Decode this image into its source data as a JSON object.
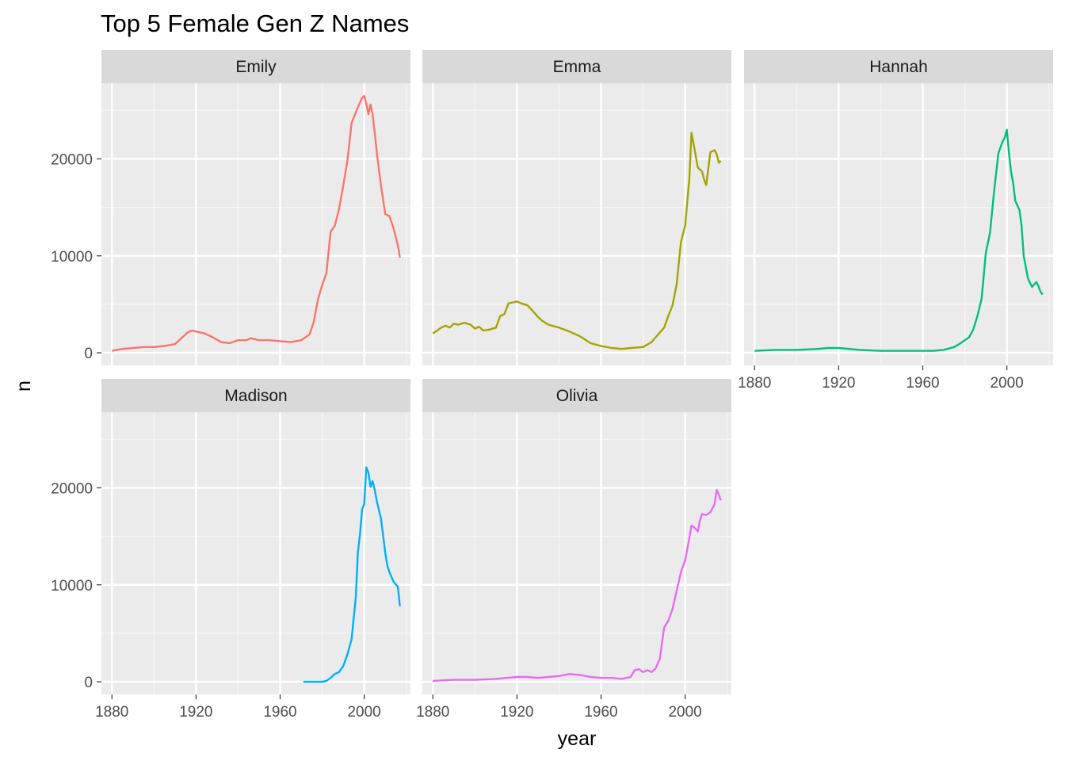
{
  "chart_data": {
    "type": "line",
    "title": "Top 5 Female Gen Z Names",
    "xlabel": "year",
    "ylabel": "n",
    "xlim": [
      1875,
      2022
    ],
    "ylim": [
      -1300,
      27800
    ],
    "x_ticks": [
      1880,
      1920,
      1960,
      2000
    ],
    "y_ticks": [
      0,
      10000,
      20000
    ],
    "x_tick_labels": [
      "1880",
      "1920",
      "1960",
      "2000"
    ],
    "y_tick_labels": [
      "0",
      "10000",
      "20000"
    ],
    "grid": true,
    "legend": "none",
    "panels": [
      {
        "name": "Emily",
        "color": "#F8766D",
        "x": [
          1880,
          1885,
          1890,
          1895,
          1900,
          1905,
          1910,
          1913,
          1916,
          1918,
          1920,
          1924,
          1928,
          1932,
          1936,
          1940,
          1944,
          1946,
          1950,
          1955,
          1960,
          1965,
          1970,
          1974,
          1976,
          1978,
          1980,
          1982,
          1984,
          1986,
          1988,
          1990,
          1992,
          1994,
          1996,
          1998,
          1999,
          2000,
          2001,
          2002,
          2003,
          2004,
          2005,
          2006,
          2008,
          2010,
          2012,
          2014,
          2016,
          2017
        ],
        "y": [
          200,
          400,
          500,
          600,
          600,
          700,
          900,
          1500,
          2100,
          2300,
          2200,
          2000,
          1600,
          1100,
          1000,
          1300,
          1300,
          1500,
          1300,
          1300,
          1200,
          1100,
          1300,
          1900,
          3200,
          5500,
          7000,
          8200,
          12500,
          13100,
          14800,
          17200,
          19800,
          23700,
          24800,
          25800,
          26300,
          26500,
          25700,
          24600,
          25600,
          24600,
          22700,
          20600,
          17200,
          14300,
          14100,
          12800,
          11100,
          9800
        ]
      },
      {
        "name": "Emma",
        "color": "#A3A500",
        "x": [
          1880,
          1882,
          1884,
          1886,
          1888,
          1890,
          1892,
          1895,
          1898,
          1900,
          1902,
          1904,
          1907,
          1910,
          1912,
          1914,
          1916,
          1918,
          1920,
          1922,
          1925,
          1928,
          1930,
          1932,
          1935,
          1940,
          1945,
          1950,
          1955,
          1960,
          1965,
          1970,
          1974,
          1980,
          1984,
          1986,
          1988,
          1990,
          1992,
          1994,
          1996,
          1998,
          2000,
          2002,
          2003,
          2004,
          2006,
          2008,
          2009,
          2010,
          2012,
          2014,
          2015,
          2016,
          2017
        ],
        "y": [
          2000,
          2300,
          2600,
          2800,
          2600,
          3000,
          2900,
          3100,
          2900,
          2500,
          2700,
          2300,
          2400,
          2600,
          3800,
          4000,
          5100,
          5200,
          5300,
          5100,
          4900,
          4200,
          3700,
          3300,
          2900,
          2600,
          2200,
          1700,
          1000,
          700,
          500,
          400,
          500,
          600,
          1100,
          1600,
          2100,
          2600,
          3800,
          4900,
          7100,
          11400,
          13100,
          17900,
          22700,
          21600,
          19100,
          18700,
          17900,
          17300,
          20700,
          20900,
          20500,
          19600,
          19800
        ]
      },
      {
        "name": "Hannah",
        "color": "#00BF7D",
        "x": [
          1880,
          1890,
          1900,
          1910,
          1915,
          1920,
          1930,
          1940,
          1950,
          1960,
          1965,
          1970,
          1975,
          1978,
          1980,
          1982,
          1984,
          1986,
          1988,
          1990,
          1992,
          1994,
          1996,
          1998,
          1999,
          2000,
          2001,
          2002,
          2003,
          2004,
          2006,
          2007,
          2008,
          2010,
          2011,
          2012,
          2014,
          2015,
          2016,
          2017
        ],
        "y": [
          200,
          300,
          300,
          400,
          500,
          500,
          300,
          200,
          200,
          200,
          200,
          300,
          600,
          1000,
          1300,
          1600,
          2400,
          3800,
          5600,
          10300,
          12400,
          16800,
          20600,
          21800,
          22200,
          23000,
          20600,
          18700,
          17500,
          15700,
          14700,
          13100,
          10000,
          7700,
          7200,
          6800,
          7300,
          6900,
          6300,
          6000
        ]
      },
      {
        "name": "Madison",
        "color": "#00B0F6",
        "x": [
          1971,
          1974,
          1978,
          1980,
          1982,
          1984,
          1986,
          1988,
          1990,
          1992,
          1994,
          1996,
          1997,
          1998,
          1999,
          2000,
          2001,
          2002,
          2003,
          2004,
          2005,
          2006,
          2008,
          2010,
          2011,
          2012,
          2014,
          2016,
          2017
        ],
        "y": [
          0,
          0,
          0,
          0,
          100,
          400,
          800,
          1000,
          1600,
          2800,
          4400,
          8700,
          13400,
          15200,
          17800,
          18300,
          22100,
          21600,
          20100,
          20700,
          19800,
          18600,
          16800,
          13300,
          12000,
          11300,
          10300,
          9800,
          7800
        ]
      },
      {
        "name": "Olivia",
        "color": "#E76BF3",
        "x": [
          1880,
          1890,
          1900,
          1910,
          1915,
          1920,
          1925,
          1930,
          1935,
          1940,
          1945,
          1950,
          1955,
          1960,
          1965,
          1970,
          1974,
          1976,
          1978,
          1980,
          1982,
          1984,
          1986,
          1988,
          1990,
          1992,
          1994,
          1996,
          1998,
          2000,
          2002,
          2003,
          2004,
          2006,
          2007,
          2008,
          2010,
          2012,
          2014,
          2015,
          2016,
          2017
        ],
        "y": [
          100,
          200,
          200,
          300,
          400,
          500,
          500,
          400,
          500,
          600,
          800,
          700,
          500,
          400,
          400,
          300,
          500,
          1200,
          1300,
          1000,
          1200,
          1000,
          1400,
          2400,
          5600,
          6300,
          7500,
          9400,
          11300,
          12500,
          14800,
          16100,
          16000,
          15500,
          16600,
          17300,
          17200,
          17500,
          18300,
          19800,
          19300,
          18700
        ]
      }
    ]
  }
}
